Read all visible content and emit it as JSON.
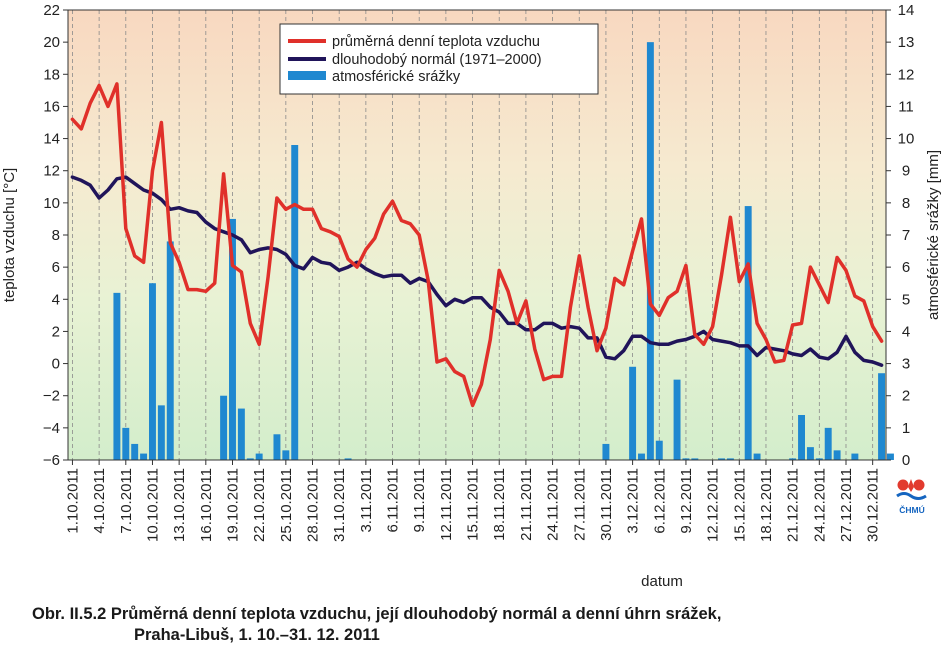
{
  "chart_data": {
    "type": "bar+line",
    "xlabel": "datum",
    "ylabel_left": "teplota vzduchu [°C]",
    "ylabel_right": "atmosférické srážky [mm]",
    "ylim_left": [
      -6,
      22
    ],
    "ylim_right": [
      0,
      14
    ],
    "yticks_left": [
      -6,
      -4,
      -2,
      0,
      2,
      4,
      6,
      8,
      10,
      12,
      14,
      16,
      18,
      20,
      22
    ],
    "yticks_right": [
      0,
      1,
      2,
      3,
      4,
      5,
      6,
      7,
      8,
      9,
      10,
      11,
      12,
      13,
      14
    ],
    "yticks_left_labels": [
      "−6",
      "−4",
      "−2",
      "0",
      "2",
      "4",
      "6",
      "8",
      "10",
      "12",
      "14",
      "16",
      "18",
      "20",
      "22"
    ],
    "x_ticks": [
      {
        "label": "1.10.2011",
        "day": 1
      },
      {
        "label": "4.10.2011",
        "day": 4
      },
      {
        "label": "7.10.2011",
        "day": 7
      },
      {
        "label": "10.10.2011",
        "day": 10
      },
      {
        "label": "13.10.2011",
        "day": 13
      },
      {
        "label": "16.10.2011",
        "day": 16
      },
      {
        "label": "19.10.2011",
        "day": 19
      },
      {
        "label": "22.10.2011",
        "day": 22
      },
      {
        "label": "25.10.2011",
        "day": 25
      },
      {
        "label": "28.10.2011",
        "day": 28
      },
      {
        "label": "31.10.2011",
        "day": 31
      },
      {
        "label": "3.11.2011",
        "day": 34
      },
      {
        "label": "6.11.2011",
        "day": 37
      },
      {
        "label": "9.11.2011",
        "day": 40
      },
      {
        "label": "12.11.2011",
        "day": 43
      },
      {
        "label": "15.11.2011",
        "day": 46
      },
      {
        "label": "18.11.2011",
        "day": 49
      },
      {
        "label": "21.11.2011",
        "day": 52
      },
      {
        "label": "24.11.2011",
        "day": 55
      },
      {
        "label": "27.11.2011",
        "day": 58
      },
      {
        "label": "30.11.2011",
        "day": 61
      },
      {
        "label": "3.12.2011",
        "day": 64
      },
      {
        "label": "6.12.2011",
        "day": 67
      },
      {
        "label": "9.12.2011",
        "day": 70
      },
      {
        "label": "12.12.2011",
        "day": 73
      },
      {
        "label": "15.12.2011",
        "day": 76
      },
      {
        "label": "18.12.2011",
        "day": 79
      },
      {
        "label": "21.12.2011",
        "day": 82
      },
      {
        "label": "24.12.2011",
        "day": 85
      },
      {
        "label": "27.12.2011",
        "day": 88
      },
      {
        "label": "30.12.2011",
        "day": 91
      }
    ],
    "legend": [
      "průměrná denní teplota vzduchu",
      "dlouhodobý normál (1971–2000)",
      "atmosférické srážky"
    ],
    "series": [
      {
        "name": "průměrná denní teplota vzduchu",
        "type": "line",
        "axis": "left",
        "color": "#e0302a",
        "values": [
          15.2,
          14.6,
          16.2,
          17.3,
          16.0,
          17.4,
          8.4,
          6.7,
          6.3,
          12.0,
          15.0,
          7.5,
          6.3,
          4.6,
          4.6,
          4.5,
          5.0,
          11.8,
          6.1,
          5.7,
          2.5,
          1.2,
          5.4,
          10.3,
          9.6,
          9.9,
          9.6,
          9.6,
          8.4,
          8.2,
          7.9,
          6.5,
          6.0,
          7.1,
          7.8,
          9.3,
          10.1,
          8.9,
          8.7,
          8.0,
          5.2,
          0.1,
          0.3,
          -0.5,
          -0.8,
          -2.6,
          -1.3,
          1.5,
          5.8,
          4.5,
          2.5,
          3.9,
          0.9,
          -1.0,
          -0.8,
          -0.8,
          3.5,
          6.7,
          3.5,
          0.8,
          2.2,
          5.3,
          4.9,
          7.0,
          9.0,
          3.7,
          3.0,
          4.1,
          4.5,
          6.1,
          1.8,
          1.2,
          2.3,
          5.5,
          9.1,
          5.1,
          6.2,
          2.5,
          1.5,
          0.1,
          0.2,
          2.4,
          2.5,
          6.0,
          4.9,
          3.8,
          6.6,
          5.8,
          4.2,
          3.9,
          2.3,
          1.4
        ]
      },
      {
        "name": "dlouhodobý normál (1971–2000)",
        "type": "line",
        "axis": "left",
        "color": "#20145a",
        "values": [
          11.6,
          11.4,
          11.1,
          10.3,
          10.8,
          11.5,
          11.6,
          11.2,
          10.8,
          10.6,
          10.2,
          9.6,
          9.7,
          9.5,
          9.4,
          8.8,
          8.4,
          8.2,
          8.0,
          7.7,
          6.9,
          7.1,
          7.2,
          7.1,
          6.8,
          6.1,
          5.9,
          6.6,
          6.3,
          6.2,
          5.8,
          6.0,
          6.3,
          5.9,
          5.6,
          5.4,
          5.5,
          5.5,
          5.0,
          5.3,
          5.1,
          4.3,
          3.6,
          4.0,
          3.8,
          4.1,
          4.1,
          3.5,
          3.2,
          2.5,
          2.5,
          2.1,
          2.1,
          2.5,
          2.5,
          2.2,
          2.3,
          2.2,
          1.6,
          1.6,
          0.4,
          0.3,
          0.8,
          1.7,
          1.7,
          1.3,
          1.2,
          1.2,
          1.4,
          1.5,
          1.7,
          2.0,
          1.5,
          1.4,
          1.3,
          1.1,
          1.1,
          0.5,
          1.0,
          0.9,
          0.8,
          0.6,
          0.5,
          0.9,
          0.4,
          0.3,
          0.7,
          1.7,
          0.7,
          0.2,
          0.1,
          -0.1
        ]
      },
      {
        "name": "atmosférické srážky",
        "type": "bar",
        "axis": "right",
        "color": "#1f88d0",
        "values": [
          0,
          0,
          0,
          0,
          0,
          5.2,
          1.0,
          0.5,
          0.2,
          5.5,
          1.7,
          6.8,
          0,
          0,
          0,
          0,
          0,
          2.0,
          7.5,
          1.6,
          0.05,
          0.2,
          0,
          0.8,
          0.3,
          9.8,
          0,
          0,
          0,
          0,
          0,
          0.05,
          0,
          0,
          0,
          0,
          0,
          0,
          0,
          0,
          0,
          0,
          0,
          0,
          0,
          0,
          0,
          0,
          0,
          0,
          0,
          0,
          0,
          0,
          0,
          0,
          0,
          0,
          0,
          0,
          0.5,
          0,
          0,
          2.9,
          0.2,
          13.0,
          0.6,
          0,
          2.5,
          0.05,
          0.05,
          0,
          0,
          0.05,
          0.05,
          0,
          7.9,
          0.2,
          0,
          0,
          0,
          0.05,
          1.4,
          0.4,
          0.05,
          1.0,
          0.3,
          0,
          0.2,
          0,
          0,
          2.7,
          0.2
        ]
      }
    ],
    "grid": "vertical dashed",
    "legend_position": "top-center"
  },
  "caption": {
    "line1": "Obr. II.5.2  Průměrná denní teplota vzduchu, její dlouhodobý normál a denní úhrn srážek,",
    "line2": "Praha-Libuš, 1. 10.–31. 12. 2011"
  },
  "logo": {
    "text": "ČHMÚ"
  }
}
